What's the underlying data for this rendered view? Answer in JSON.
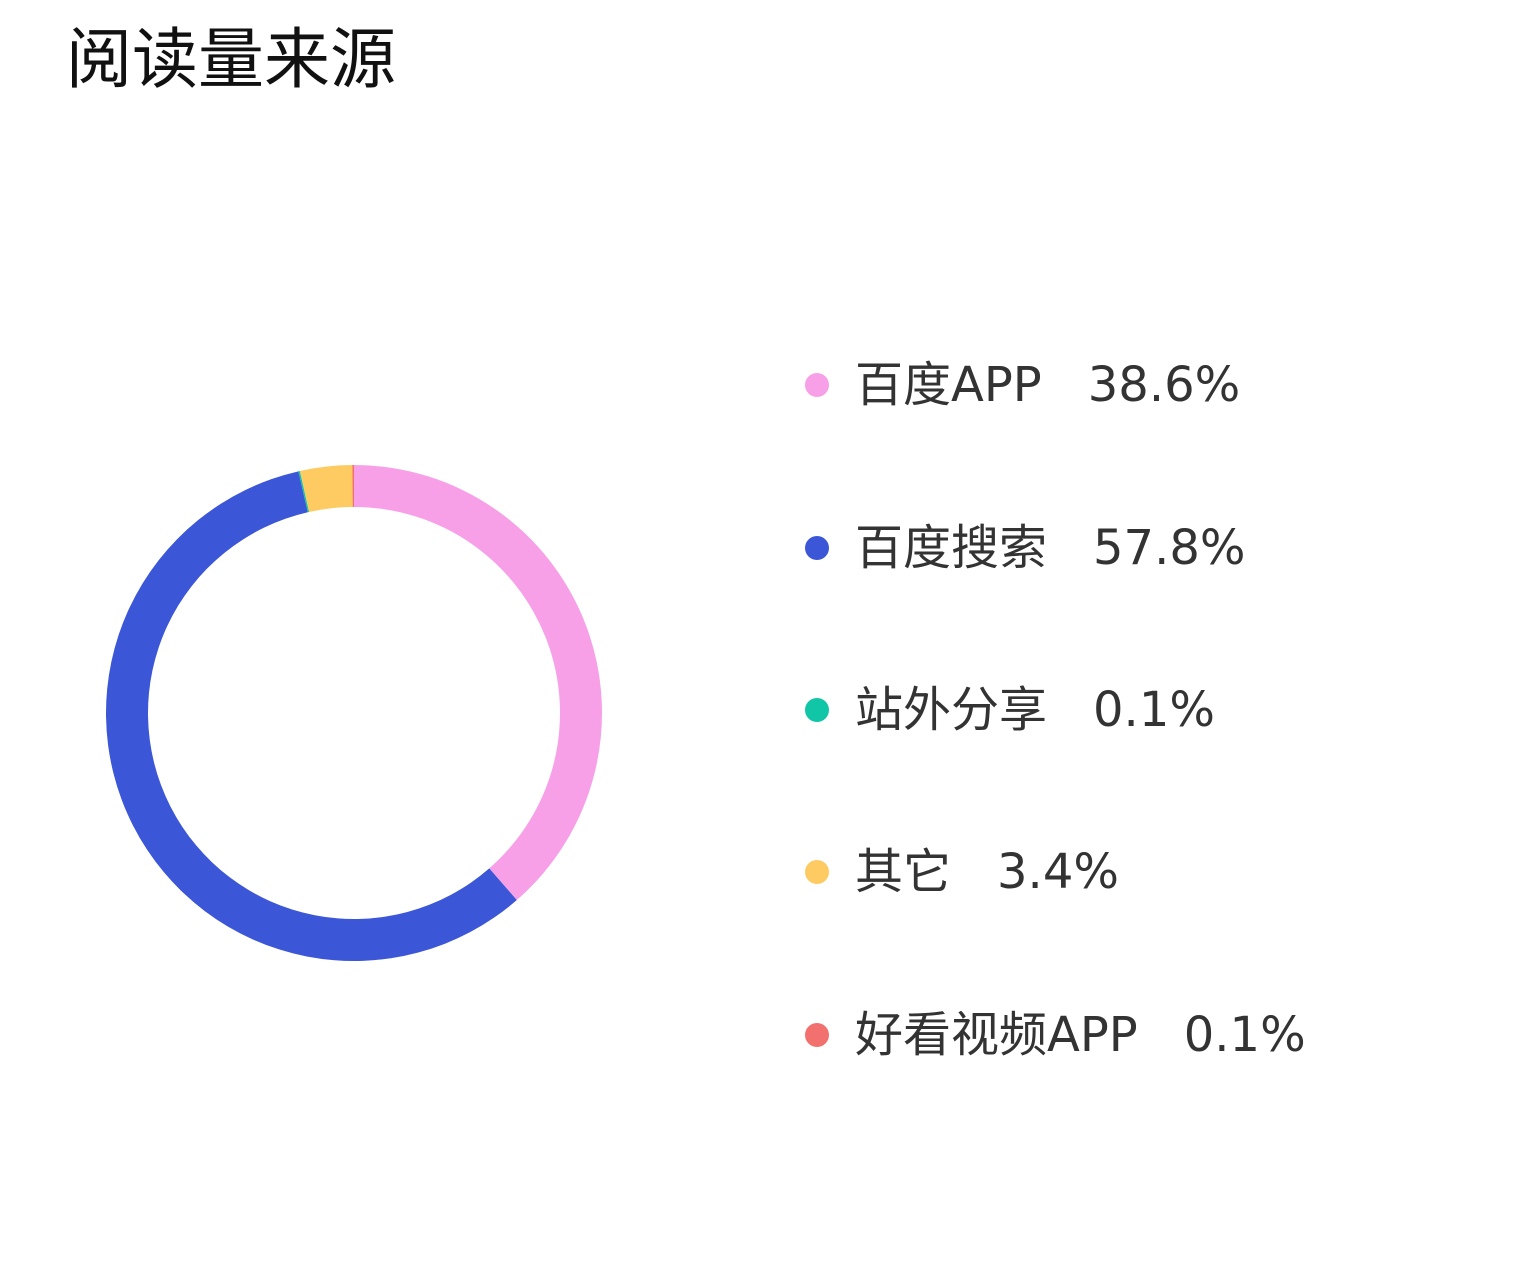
{
  "chart_data": {
    "type": "pie",
    "title": "阅读量来源",
    "categories": [
      "百度APP",
      "百度搜索",
      "站外分享",
      "其它",
      "好看视频APP"
    ],
    "values": [
      38.6,
      57.8,
      0.1,
      3.4,
      0.1
    ],
    "value_labels": [
      "38.6%",
      "57.8%",
      "0.1%",
      "3.4%",
      "0.1%"
    ],
    "colors": [
      "#f7a0e8",
      "#3b56d6",
      "#11c5a7",
      "#fdcb61",
      "#f2706d"
    ],
    "donut": true,
    "legend_placement": "right"
  }
}
